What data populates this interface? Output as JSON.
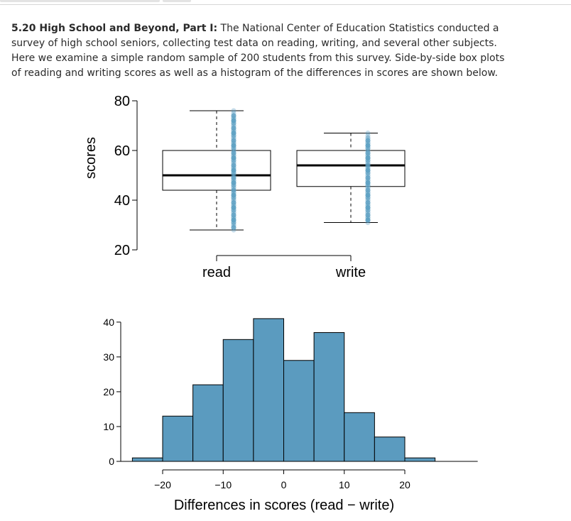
{
  "problem": {
    "heading": "5.20 High School and Beyond, Part I:",
    "text": "The National Center of Education Statistics conducted a survey of high school seniors, collecting test data on reading, writing, and several other subjects. Here we examine a simple random sample of 200 students from this survey. Side-by-side box plots of reading and writing scores as well as a histogram of the differences in scores are shown below."
  },
  "chart_data": [
    {
      "type": "box",
      "ylabel": "scores",
      "ylim": [
        20,
        80
      ],
      "yticks": [
        20,
        40,
        60,
        80
      ],
      "categories": [
        "read",
        "write"
      ],
      "boxes": [
        {
          "name": "read",
          "whisker_low": 28,
          "q1": 44,
          "median": 50,
          "q3": 60,
          "whisker_high": 76,
          "point_color": "#5b9fc2"
        },
        {
          "name": "write",
          "whisker_low": 31,
          "q1": 45.5,
          "median": 54,
          "q3": 60,
          "whisker_high": 67,
          "point_color": "#5b9fc2"
        }
      ]
    },
    {
      "type": "bar",
      "xlabel": "Differences in scores (read − write)",
      "ylabel": "",
      "xticks": [
        -20,
        -10,
        0,
        10,
        20
      ],
      "yticks": [
        0,
        10,
        20,
        30,
        40
      ],
      "ylim": [
        0,
        42
      ],
      "bin_width": 5,
      "bin_start": -25,
      "counts": [
        1,
        13,
        22,
        35,
        41,
        29,
        37,
        14,
        7,
        1
      ],
      "bar_color": "#5b9bbf"
    }
  ]
}
